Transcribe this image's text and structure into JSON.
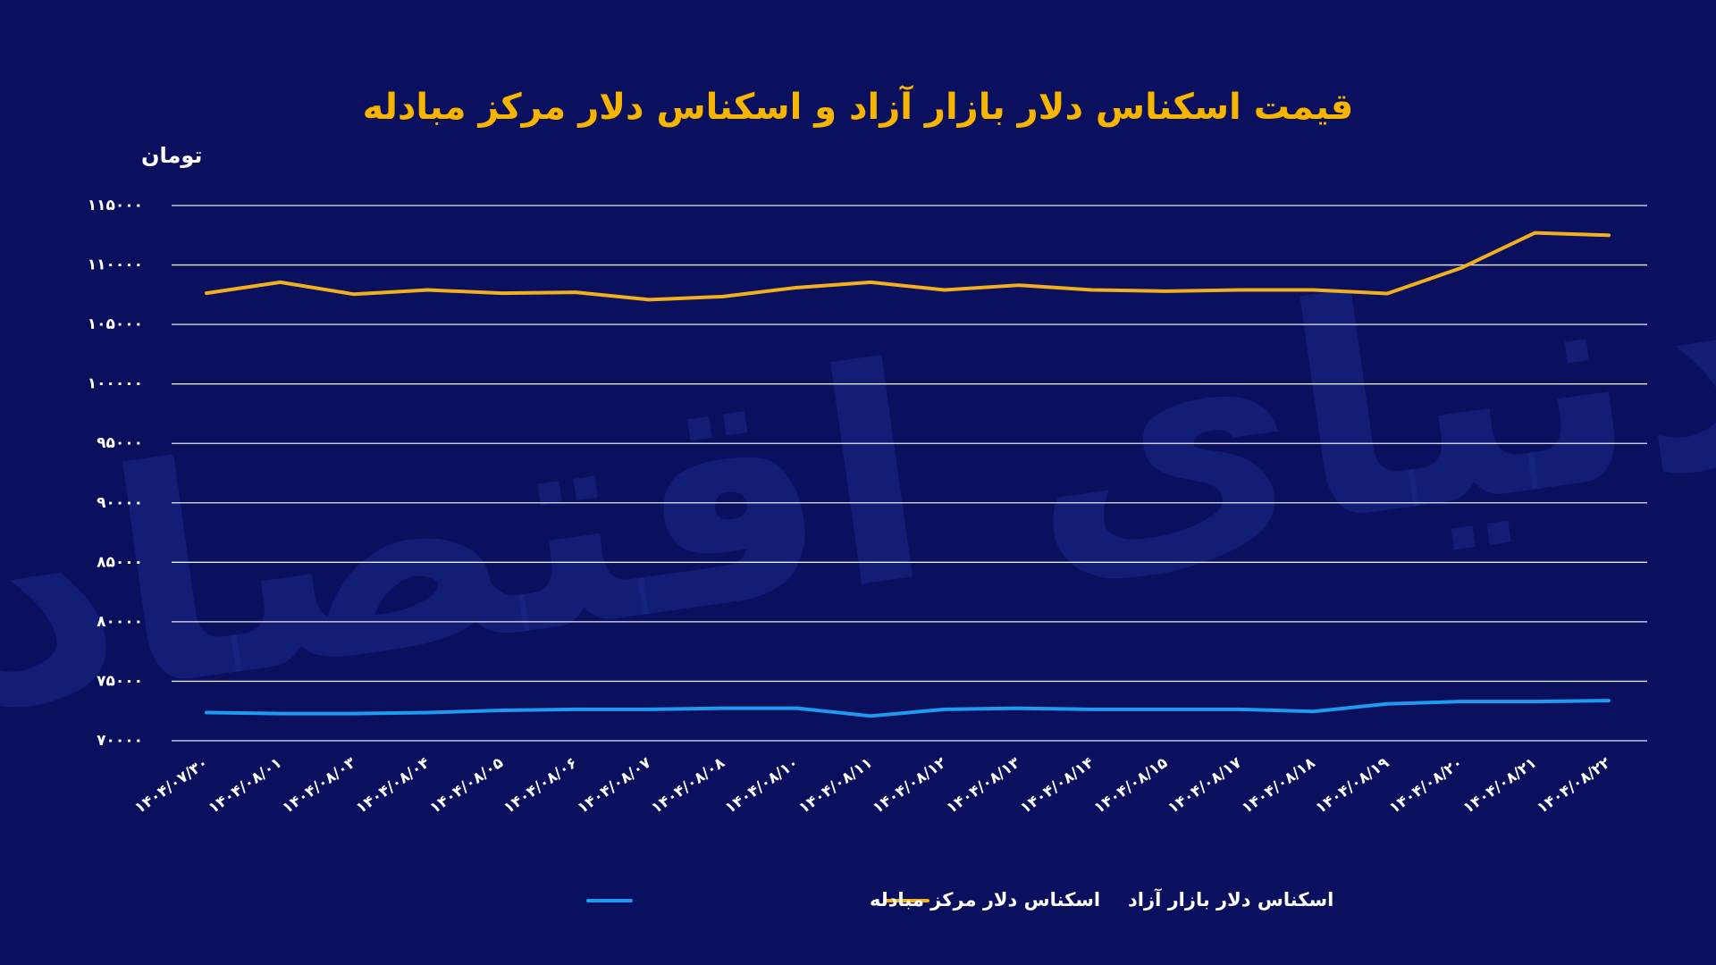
{
  "chart_data": {
    "type": "line",
    "title": "قیمت اسکناس دلار بازار آزاد و اسکناس دلار مرکز مبادله",
    "y_label": "تومان",
    "watermark": "دنیای اقتصاد",
    "categories": [
      "۱۴۰۴/۰۷/۳۰",
      "۱۴۰۴/۰۸/۰۱",
      "۱۴۰۴/۰۸/۰۳",
      "۱۴۰۴/۰۸/۰۴",
      "۱۴۰۴/۰۸/۰۵",
      "۱۴۰۴/۰۸/۰۶",
      "۱۴۰۴/۰۸/۰۷",
      "۱۴۰۴/۰۸/۰۸",
      "۱۴۰۴/۰۸/۱۰",
      "۱۴۰۴/۰۸/۱۱",
      "۱۴۰۴/۰۸/۱۲",
      "۱۴۰۴/۰۸/۱۳",
      "۱۴۰۴/۰۸/۱۴",
      "۱۴۰۴/۰۸/۱۵",
      "۱۴۰۴/۰۸/۱۷",
      "۱۴۰۴/۰۸/۱۸",
      "۱۴۰۴/۰۸/۱۹",
      "۱۴۰۴/۰۸/۲۰",
      "۱۴۰۴/۰۸/۲۱",
      "۱۴۰۴/۰۸/۲۲"
    ],
    "series": [
      {
        "name": "اسکناس دلار مرکز مبادله",
        "color": "#1e9bf0",
        "values": [
          72370,
          72280,
          72280,
          72370,
          72550,
          72640,
          72640,
          72730,
          72730,
          72080,
          72640,
          72730,
          72640,
          72640,
          72640,
          72460,
          73100,
          73300,
          73300,
          73370
        ]
      },
      {
        "name": "اسکناس دلار بازار آزاد",
        "color": "#f2b01e",
        "values": [
          107630,
          108550,
          107540,
          107900,
          107630,
          107700,
          107080,
          107350,
          108100,
          108550,
          107900,
          108300,
          107900,
          107800,
          107900,
          107900,
          107600,
          109750,
          112700,
          112500
        ]
      }
    ],
    "ylim": [
      70000,
      115000
    ],
    "yticks": [
      {
        "value": 70000,
        "label": "۷۰۰۰۰"
      },
      {
        "value": 75000,
        "label": "۷۵۰۰۰"
      },
      {
        "value": 80000,
        "label": "۸۰۰۰۰"
      },
      {
        "value": 85000,
        "label": "۸۵۰۰۰"
      },
      {
        "value": 90000,
        "label": "۹۰۰۰۰"
      },
      {
        "value": 95000,
        "label": "۹۵۰۰۰"
      },
      {
        "value": 100000,
        "label": "۱۰۰۰۰۰"
      },
      {
        "value": 105000,
        "label": "۱۰۵۰۰۰"
      },
      {
        "value": 110000,
        "label": "۱۱۰۰۰۰"
      },
      {
        "value": 115000,
        "label": "۱۱۵۰۰۰"
      }
    ],
    "grid": true,
    "legend": "bottom"
  }
}
